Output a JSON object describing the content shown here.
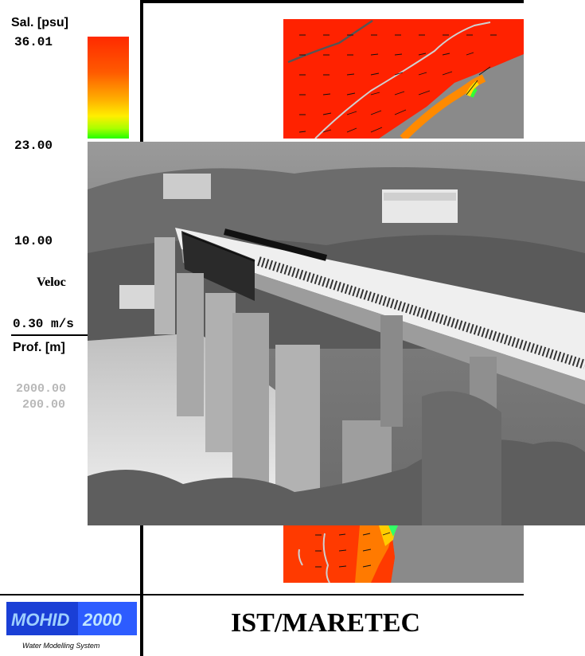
{
  "legend": {
    "salinity_label": "Sal. [psu]",
    "salinity_max": "36.01",
    "salinity_mid": "23.00",
    "salinity_min": "10.00",
    "colorbar_colors": [
      "#ff2a00",
      "#ffb000",
      "#22ff00"
    ],
    "velocity_label": "Veloc",
    "velocity_value": "0.30 m/s",
    "depth_label": "Prof. [m]",
    "depth_max": "2000.00",
    "depth_min": "200.00"
  },
  "footer": {
    "logo_text": "MOHID 2000",
    "logo_subtitle": "Water Modelling System",
    "organization": "IST/MARETEC"
  },
  "colors": {
    "map_sea": "#ff2200",
    "map_land": "#8a8a8a",
    "logo_blue": "#1a3fd6"
  }
}
